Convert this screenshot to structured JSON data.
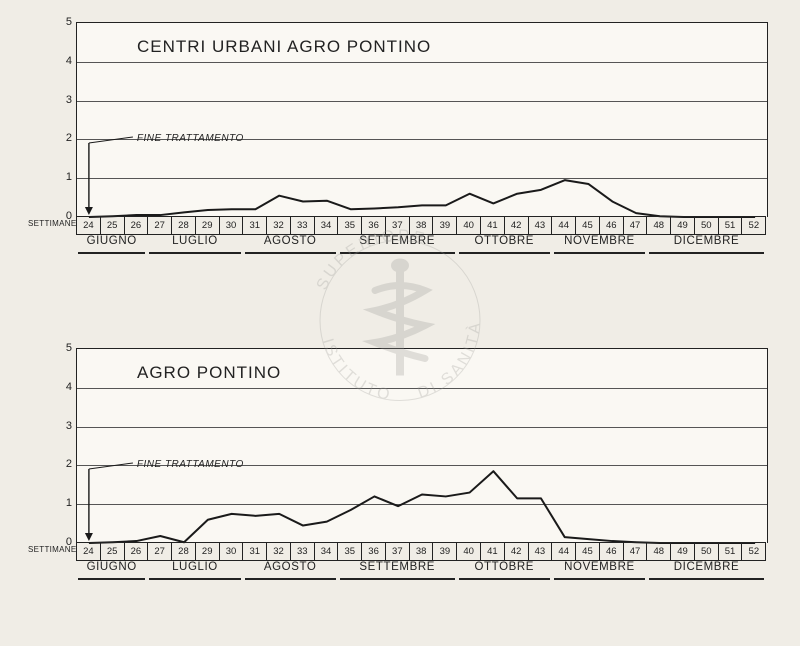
{
  "background_color": "#f0ede6",
  "plot_background": "#faf8f3",
  "line_color": "#1a1a1a",
  "grid_color": "#555555",
  "axis_color": "#222222",
  "text_color": "#222222",
  "weeks": [
    24,
    25,
    26,
    27,
    28,
    29,
    30,
    31,
    32,
    33,
    34,
    35,
    36,
    37,
    38,
    39,
    40,
    41,
    42,
    43,
    44,
    45,
    46,
    47,
    48,
    49,
    50,
    51,
    52
  ],
  "settimane_label": "SETTIMANE",
  "months": [
    {
      "label": "GIUGNO",
      "start_week": 24,
      "end_week": 27
    },
    {
      "label": "LUGLIO",
      "start_week": 27,
      "end_week": 31
    },
    {
      "label": "AGOSTO",
      "start_week": 31,
      "end_week": 35
    },
    {
      "label": "SETTEMBRE",
      "start_week": 35,
      "end_week": 40
    },
    {
      "label": "OTTOBRE",
      "start_week": 40,
      "end_week": 44
    },
    {
      "label": "NOVEMBRE",
      "start_week": 44,
      "end_week": 48
    },
    {
      "label": "DICEMBRE",
      "start_week": 48,
      "end_week": 53
    }
  ],
  "ylim": [
    0,
    5
  ],
  "yticks": [
    0,
    1,
    2,
    3,
    4,
    5
  ],
  "annotation": {
    "label": "FINE TRATTAMENTO",
    "at_week": 24.5
  },
  "charts": [
    {
      "key": "centri_urbani",
      "title": "CENTRI URBANI AGRO PONTINO",
      "points": [
        {
          "w": 24,
          "y": 0.0
        },
        {
          "w": 25,
          "y": 0.02
        },
        {
          "w": 26,
          "y": 0.05
        },
        {
          "w": 27,
          "y": 0.05
        },
        {
          "w": 28,
          "y": 0.12
        },
        {
          "w": 29,
          "y": 0.18
        },
        {
          "w": 30,
          "y": 0.2
        },
        {
          "w": 31,
          "y": 0.2
        },
        {
          "w": 32,
          "y": 0.55
        },
        {
          "w": 33,
          "y": 0.4
        },
        {
          "w": 34,
          "y": 0.42
        },
        {
          "w": 35,
          "y": 0.2
        },
        {
          "w": 36,
          "y": 0.22
        },
        {
          "w": 37,
          "y": 0.25
        },
        {
          "w": 38,
          "y": 0.3
        },
        {
          "w": 39,
          "y": 0.3
        },
        {
          "w": 40,
          "y": 0.6
        },
        {
          "w": 41,
          "y": 0.35
        },
        {
          "w": 42,
          "y": 0.6
        },
        {
          "w": 43,
          "y": 0.7
        },
        {
          "w": 44,
          "y": 0.95
        },
        {
          "w": 45,
          "y": 0.85
        },
        {
          "w": 46,
          "y": 0.4
        },
        {
          "w": 47,
          "y": 0.1
        },
        {
          "w": 48,
          "y": 0.02
        },
        {
          "w": 49,
          "y": 0.0
        },
        {
          "w": 50,
          "y": 0.0
        },
        {
          "w": 51,
          "y": 0.0
        },
        {
          "w": 52,
          "y": 0.0
        }
      ]
    },
    {
      "key": "agro_pontino",
      "title": "AGRO PONTINO",
      "points": [
        {
          "w": 24,
          "y": 0.0
        },
        {
          "w": 25,
          "y": 0.02
        },
        {
          "w": 26,
          "y": 0.05
        },
        {
          "w": 27,
          "y": 0.18
        },
        {
          "w": 28,
          "y": 0.02
        },
        {
          "w": 29,
          "y": 0.6
        },
        {
          "w": 30,
          "y": 0.75
        },
        {
          "w": 31,
          "y": 0.7
        },
        {
          "w": 32,
          "y": 0.75
        },
        {
          "w": 33,
          "y": 0.45
        },
        {
          "w": 34,
          "y": 0.55
        },
        {
          "w": 35,
          "y": 0.85
        },
        {
          "w": 36,
          "y": 1.2
        },
        {
          "w": 37,
          "y": 0.95
        },
        {
          "w": 38,
          "y": 1.25
        },
        {
          "w": 39,
          "y": 1.2
        },
        {
          "w": 40,
          "y": 1.3
        },
        {
          "w": 41,
          "y": 1.85
        },
        {
          "w": 42,
          "y": 1.15
        },
        {
          "w": 43,
          "y": 1.15
        },
        {
          "w": 44,
          "y": 0.15
        },
        {
          "w": 45,
          "y": 0.1
        },
        {
          "w": 46,
          "y": 0.05
        },
        {
          "w": 47,
          "y": 0.02
        },
        {
          "w": 48,
          "y": 0.0
        },
        {
          "w": 49,
          "y": 0.0
        },
        {
          "w": 50,
          "y": 0.0
        },
        {
          "w": 51,
          "y": 0.0
        },
        {
          "w": 52,
          "y": 0.0
        }
      ]
    }
  ],
  "watermark": {
    "text1": "ISTITUTO",
    "text2": "SUPERIORE",
    "text3": "DI SANITÀ",
    "color": "#9a9a96"
  }
}
